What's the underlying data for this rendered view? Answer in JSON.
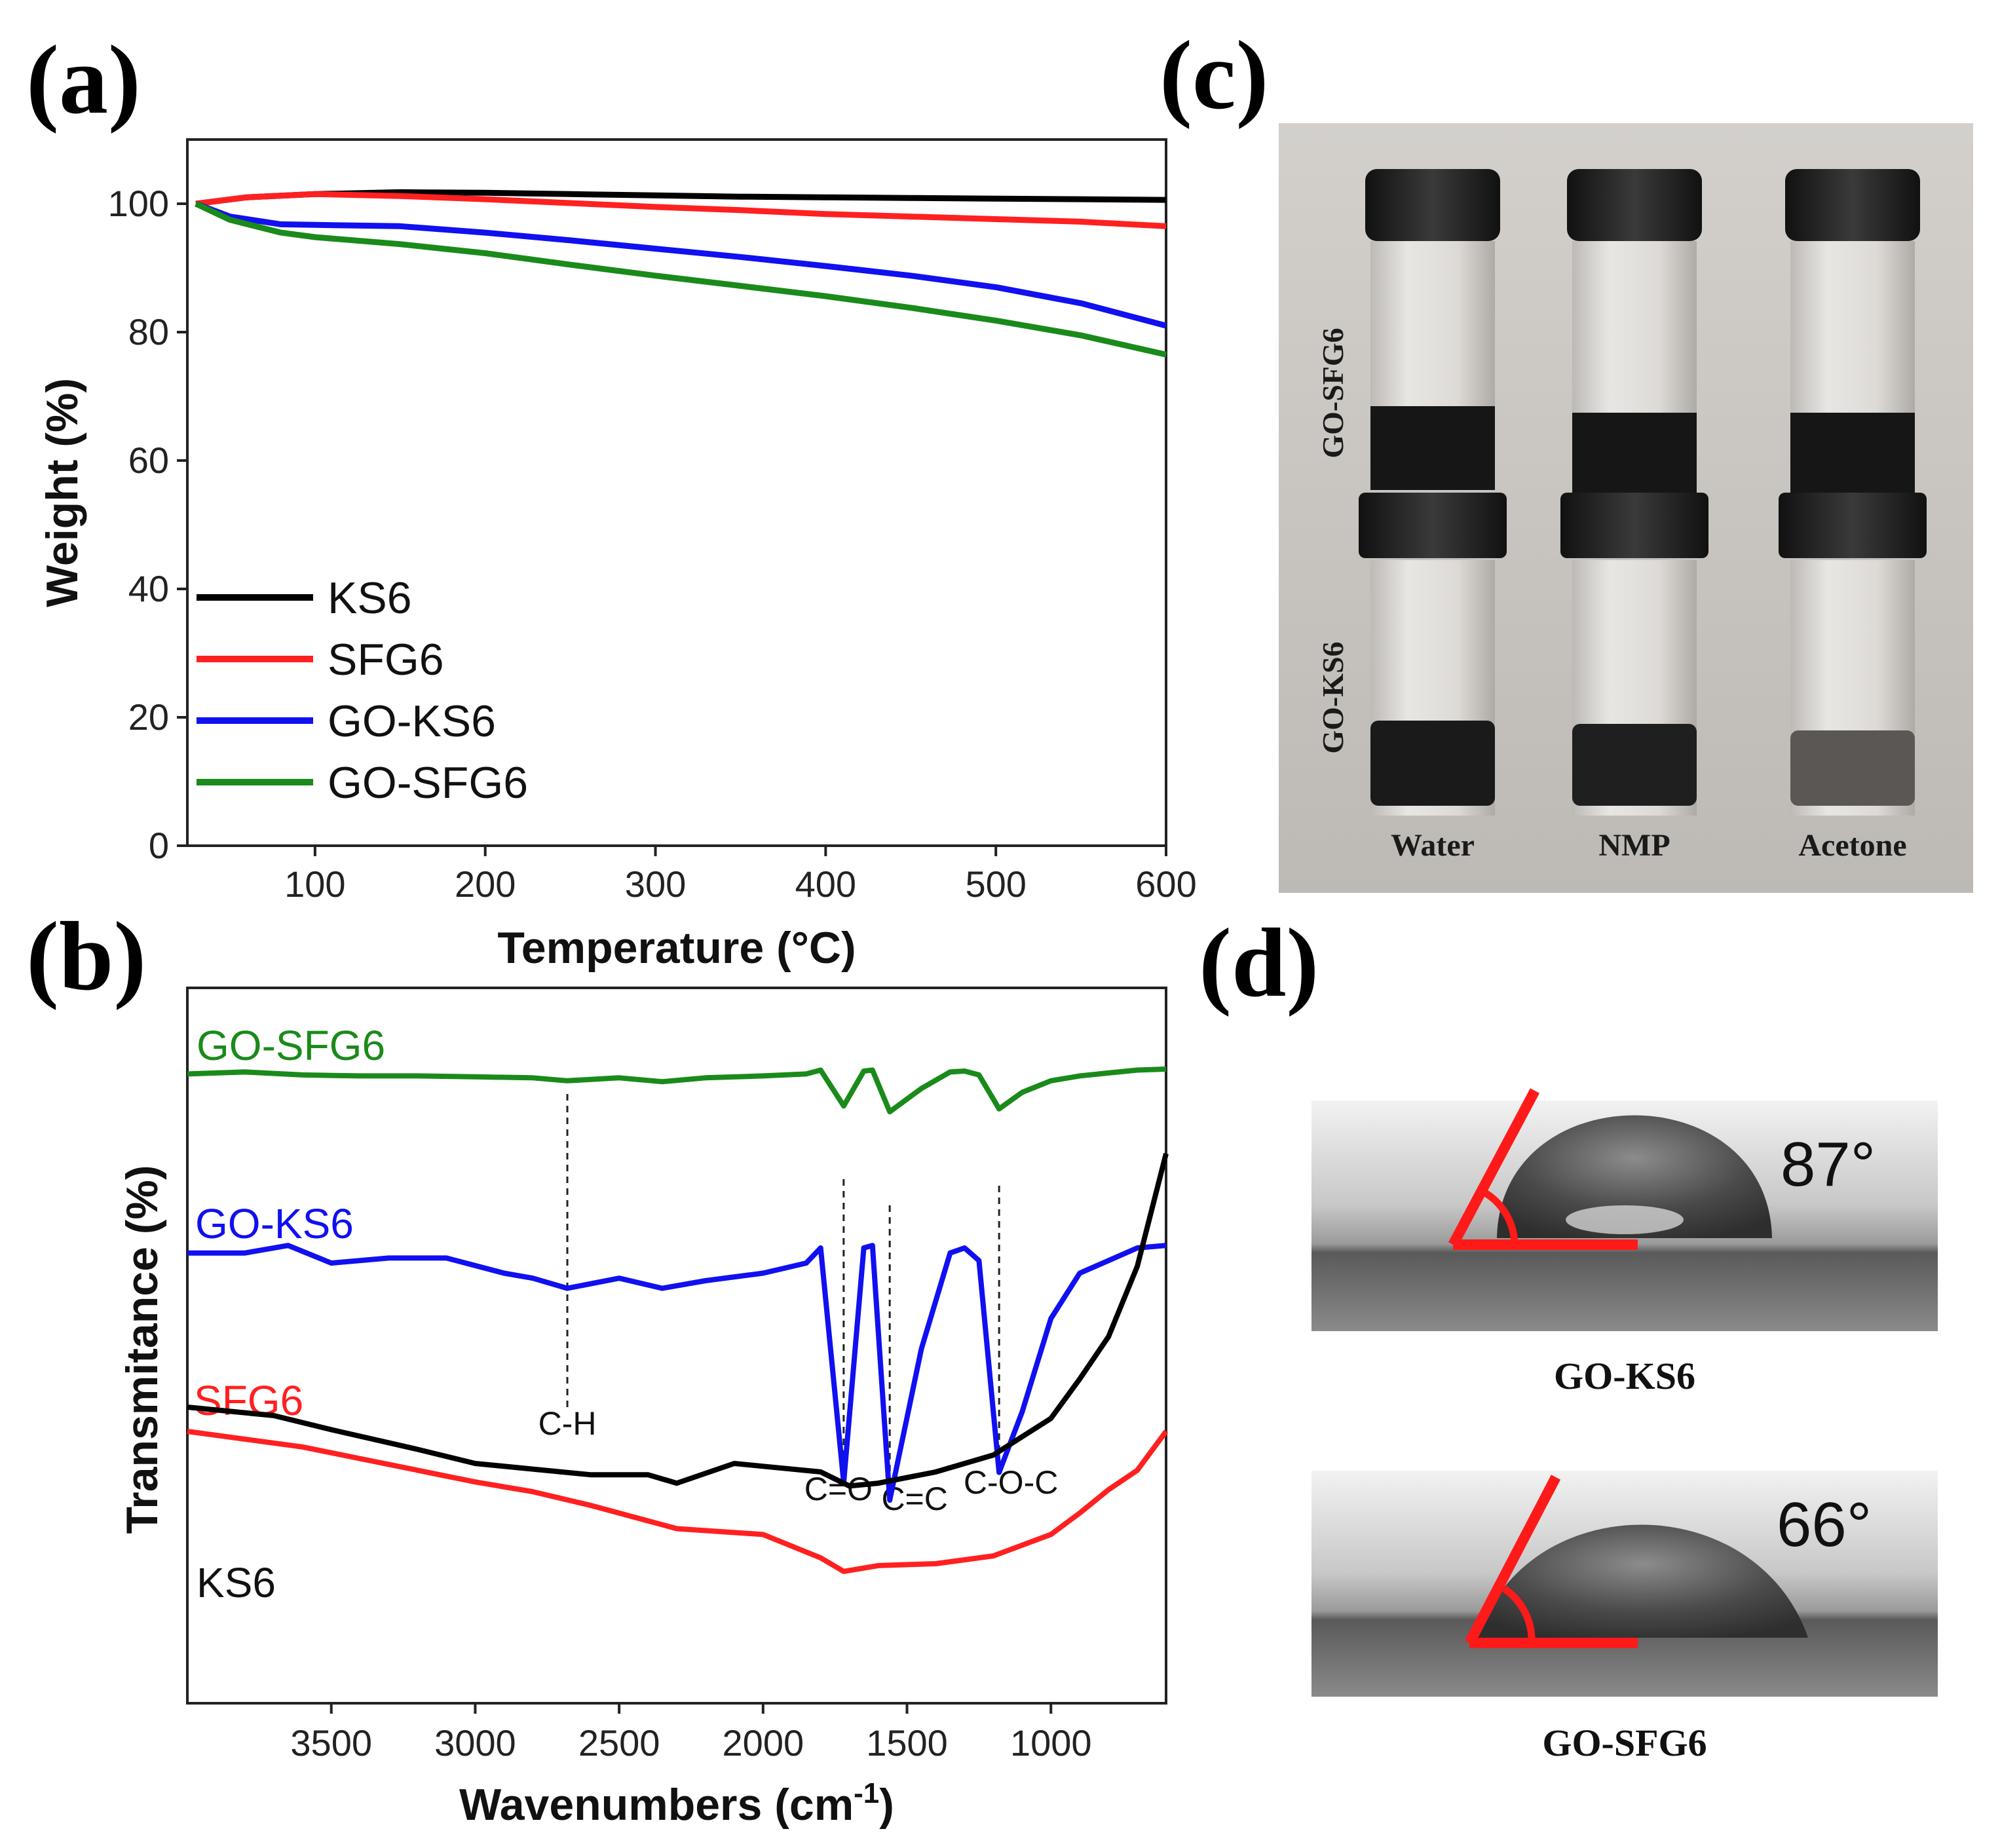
{
  "panels": {
    "a": "(a)",
    "b": "(b)",
    "c": "(c)",
    "d": "(d)"
  },
  "chart_data": [
    {
      "type": "line",
      "panel": "(a)",
      "xlabel": "Temperature (°C)",
      "ylabel": "Weight (%)",
      "xlim": [
        25,
        600
      ],
      "ylim": [
        0,
        110
      ],
      "xticks": [
        100,
        200,
        300,
        400,
        500,
        600
      ],
      "yticks": [
        0,
        20,
        40,
        60,
        80,
        100
      ],
      "legend_position": "lower-left",
      "series": [
        {
          "name": "KS6",
          "color": "#000000",
          "x": [
            30,
            60,
            100,
            150,
            200,
            250,
            300,
            350,
            400,
            450,
            500,
            550,
            600
          ],
          "y": [
            100,
            101,
            101.5,
            101.8,
            101.7,
            101.5,
            101.3,
            101.1,
            101,
            100.9,
            100.8,
            100.7,
            100.6
          ]
        },
        {
          "name": "SFG6",
          "color": "#ff2020",
          "x": [
            30,
            60,
            100,
            150,
            200,
            250,
            300,
            350,
            400,
            450,
            500,
            550,
            600
          ],
          "y": [
            100,
            101,
            101.5,
            101.2,
            100.7,
            100.1,
            99.5,
            99,
            98.4,
            98,
            97.6,
            97.2,
            96.5
          ]
        },
        {
          "name": "GO-KS6",
          "color": "#1010f0",
          "x": [
            30,
            50,
            80,
            100,
            150,
            200,
            250,
            300,
            350,
            400,
            450,
            500,
            550,
            600
          ],
          "y": [
            100,
            98,
            96.8,
            96.7,
            96.5,
            95.5,
            94.3,
            93,
            91.7,
            90.3,
            88.8,
            87,
            84.5,
            81
          ]
        },
        {
          "name": "GO-SFG6",
          "color": "#1a8a1a",
          "x": [
            30,
            50,
            80,
            100,
            150,
            200,
            250,
            300,
            350,
            400,
            450,
            500,
            550,
            600
          ],
          "y": [
            100,
            97.5,
            95.5,
            94.8,
            93.7,
            92.3,
            90.5,
            88.8,
            87.2,
            85.6,
            83.8,
            81.8,
            79.5,
            76.5
          ]
        }
      ]
    },
    {
      "type": "line",
      "panel": "(b)",
      "xlabel": "Wavenumbers (cm-1)",
      "xlabel_main": "Wavenumbers (cm",
      "xlabel_sup": "-1",
      "xlabel_end": ")",
      "ylabel": "Transmitance (%)",
      "xlim": [
        4000,
        600
      ],
      "xticks": [
        3500,
        3000,
        2500,
        2000,
        1500,
        1000
      ],
      "series": [
        {
          "name": "GO-SFG6",
          "color": "#1a8a1a",
          "x": [
            4000,
            3800,
            3600,
            3400,
            3200,
            3000,
            2800,
            2680,
            2500,
            2350,
            2200,
            2000,
            1850,
            1800,
            1720,
            1650,
            1620,
            1560,
            1450,
            1350,
            1300,
            1250,
            1180,
            1100,
            1000,
            900,
            800,
            700,
            600
          ],
          "y": [
            95,
            97,
            94,
            93,
            93,
            92,
            91,
            88,
            91,
            87,
            91,
            93,
            95,
            99,
            62,
            98,
            99,
            56,
            80,
            97,
            98,
            94,
            59,
            76,
            88,
            93,
            96,
            99,
            100
          ]
        },
        {
          "name": "GO-KS6",
          "color": "#1010f0",
          "x": [
            4000,
            3800,
            3650,
            3500,
            3300,
            3100,
            2900,
            2800,
            2680,
            2500,
            2350,
            2200,
            2000,
            1850,
            1800,
            1720,
            1650,
            1620,
            1560,
            1450,
            1350,
            1300,
            1250,
            1180,
            1100,
            1000,
            900,
            800,
            700,
            600
          ],
          "y": [
            98,
            98,
            101,
            94,
            96,
            96,
            90,
            88,
            84,
            88,
            84,
            87,
            90,
            94,
            100,
            7,
            100,
            101,
            0,
            60,
            98,
            100,
            95,
            11,
            35,
            72,
            90,
            95,
            100,
            101
          ]
        },
        {
          "name": "SFG6",
          "color": "#ff2020",
          "x": [
            4000,
            3600,
            3200,
            3000,
            2800,
            2600,
            2400,
            2300,
            2000,
            1800,
            1720,
            1600,
            1400,
            1200,
            1000,
            900,
            800,
            700,
            600
          ],
          "y": [
            100,
            92,
            80,
            74,
            69,
            62,
            54,
            50,
            47,
            35,
            28,
            31,
            32,
            36,
            47,
            58,
            70,
            80,
            100
          ]
        },
        {
          "name": "KS6",
          "color": "#000000",
          "x": [
            4000,
            3700,
            3500,
            3200,
            3000,
            2800,
            2600,
            2400,
            2300,
            2100,
            2000,
            1800,
            1700,
            1600,
            1400,
            1200,
            1000,
            900,
            800,
            700,
            600
          ],
          "y": [
            100,
            97,
            92,
            85,
            80,
            78,
            76,
            76,
            73,
            80,
            79,
            77,
            72,
            73,
            77,
            83,
            96,
            110,
            125,
            150,
            190
          ]
        }
      ],
      "annotations": [
        {
          "label": "C-H",
          "x": 2680
        },
        {
          "label": "C=O",
          "x": 1720
        },
        {
          "label": "C=C",
          "x": 1560
        },
        {
          "label": "C-O-C",
          "x": 1180
        }
      ]
    }
  ],
  "photo_c": {
    "side_captions": [
      "GO-SFG6",
      "GO-KS6"
    ],
    "solvents": [
      "Water",
      "NMP",
      "Acetone"
    ]
  },
  "photo_d": {
    "drops": [
      {
        "angle": "87°",
        "caption": "GO-KS6"
      },
      {
        "angle": "66°",
        "caption": "GO-SFG6"
      }
    ]
  }
}
